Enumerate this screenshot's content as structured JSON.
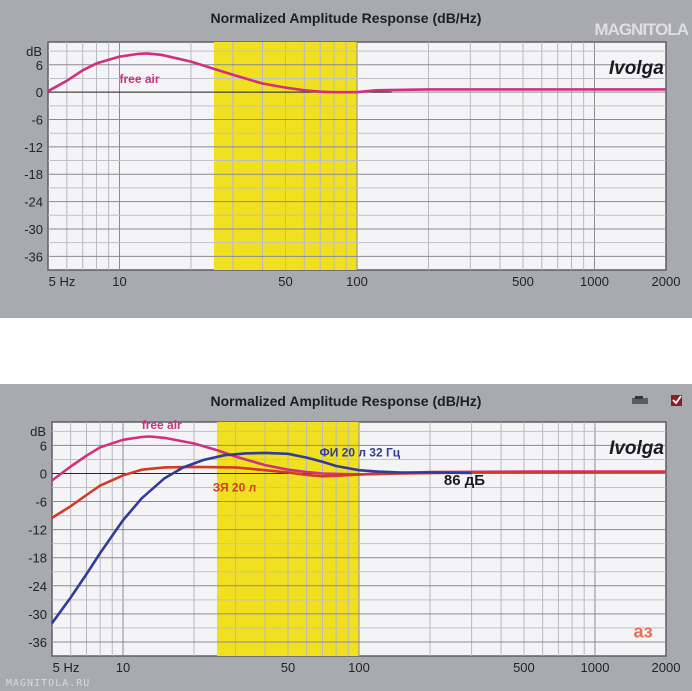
{
  "brand": "MAGNITOLA",
  "watermark": "MAGNITOLA.RU",
  "icons": [
    "disk-icon",
    "check-icon"
  ],
  "chart_data": [
    {
      "type": "line",
      "title": "Normalized Amplitude Response (dB/Hz)",
      "xscale": "log",
      "xlim": [
        5,
        2000
      ],
      "ylim": [
        -39,
        11
      ],
      "yunit": "dB",
      "yticks": [
        6,
        0,
        -6,
        -12,
        -18,
        -24,
        -30,
        -36
      ],
      "xticks": [
        {
          "value": 5,
          "label": "5 Hz"
        },
        {
          "value": 10,
          "label": "10"
        },
        {
          "value": 50,
          "label": "50"
        },
        {
          "value": 100,
          "label": "100"
        },
        {
          "value": 500,
          "label": "500"
        },
        {
          "value": 1000,
          "label": "1000"
        },
        {
          "value": 2000,
          "label": "2000"
        }
      ],
      "highlight_band": [
        25,
        100
      ],
      "grid": true,
      "watermark_label": "Ivolga",
      "series": [
        {
          "name": "free air",
          "color": "#d0307e",
          "label_at": [
            10,
            2
          ],
          "points": [
            [
              5,
              0.2
            ],
            [
              6,
              2.5
            ],
            [
              7,
              4.8
            ],
            [
              8,
              6.3
            ],
            [
              10,
              7.8
            ],
            [
              12,
              8.4
            ],
            [
              13,
              8.5
            ],
            [
              15,
              8.2
            ],
            [
              20,
              6.7
            ],
            [
              25,
              5.1
            ],
            [
              30,
              3.8
            ],
            [
              40,
              1.9
            ],
            [
              50,
              1.0
            ],
            [
              60,
              0.4
            ],
            [
              70,
              0.1
            ],
            [
              80,
              0
            ],
            [
              100,
              0
            ],
            [
              120,
              0.4
            ],
            [
              200,
              0.6
            ],
            [
              500,
              0.6
            ],
            [
              2000,
              0.6
            ]
          ]
        }
      ]
    },
    {
      "type": "line",
      "title": "Normalized Amplitude Response (dB/Hz)",
      "xscale": "log",
      "xlim": [
        5,
        2000
      ],
      "ylim": [
        -39,
        11
      ],
      "yunit": "dB",
      "yticks": [
        6,
        0,
        -6,
        -12,
        -18,
        -24,
        -30,
        -36
      ],
      "xticks": [
        {
          "value": 5,
          "label": "5 Hz"
        },
        {
          "value": 10,
          "label": "10"
        },
        {
          "value": 50,
          "label": "50"
        },
        {
          "value": 100,
          "label": "100"
        },
        {
          "value": 500,
          "label": "500"
        },
        {
          "value": 1000,
          "label": "1000"
        },
        {
          "value": 2000,
          "label": "2000"
        }
      ],
      "highlight_band": [
        25,
        100
      ],
      "grid": true,
      "watermark_label": "Ivolga",
      "annotations": [
        {
          "text": "86 дБ",
          "x": 280,
          "y": -2.5
        },
        {
          "text": "аз",
          "x": 1600,
          "y": -35
        }
      ],
      "series": [
        {
          "name": "free air",
          "color": "#d0307e",
          "label_at": [
            12,
            9.5
          ],
          "points": [
            [
              5,
              -1.5
            ],
            [
              6,
              1.5
            ],
            [
              7,
              3.8
            ],
            [
              8,
              5.6
            ],
            [
              10,
              7.2
            ],
            [
              12,
              7.8
            ],
            [
              13,
              7.9
            ],
            [
              15,
              7.6
            ],
            [
              20,
              6.4
            ],
            [
              25,
              5.0
            ],
            [
              30,
              3.6
            ],
            [
              40,
              1.8
            ],
            [
              50,
              0.8
            ],
            [
              60,
              0.3
            ],
            [
              70,
              0
            ],
            [
              80,
              -0.1
            ],
            [
              100,
              -0.2
            ],
            [
              150,
              0.1
            ],
            [
              200,
              0.3
            ],
            [
              500,
              0.4
            ],
            [
              2000,
              0.4
            ]
          ]
        },
        {
          "name": "ЗЯ 20 л",
          "color": "#d03c28",
          "label_at": [
            24,
            -3.8
          ],
          "points": [
            [
              5,
              -9.5
            ],
            [
              6,
              -7
            ],
            [
              7,
              -4.6
            ],
            [
              8,
              -2.6
            ],
            [
              10,
              -0.4
            ],
            [
              12,
              0.8
            ],
            [
              15,
              1.3
            ],
            [
              20,
              1.4
            ],
            [
              30,
              1.3
            ],
            [
              40,
              0.7
            ],
            [
              50,
              0.2
            ],
            [
              60,
              -0.3
            ],
            [
              70,
              -0.6
            ],
            [
              80,
              -0.5
            ],
            [
              100,
              -0.2
            ],
            [
              150,
              0
            ],
            [
              300,
              0.2
            ],
            [
              2000,
              0.3
            ]
          ]
        },
        {
          "name": "ФИ 20 л 32 Гц",
          "color": "#323c96",
          "label_at": [
            68,
            3.6
          ],
          "points": [
            [
              5,
              -32
            ],
            [
              6,
              -26.5
            ],
            [
              7,
              -21.5
            ],
            [
              8,
              -17
            ],
            [
              10,
              -10
            ],
            [
              12,
              -5.3
            ],
            [
              15,
              -1
            ],
            [
              18,
              1.3
            ],
            [
              22,
              2.9
            ],
            [
              27,
              3.9
            ],
            [
              33,
              4.3
            ],
            [
              40,
              4.4
            ],
            [
              50,
              4.2
            ],
            [
              60,
              3.4
            ],
            [
              70,
              2.5
            ],
            [
              80,
              1.6
            ],
            [
              100,
              0.7
            ],
            [
              120,
              0.4
            ],
            [
              150,
              0.2
            ],
            [
              200,
              0.2
            ],
            [
              300,
              0.1
            ]
          ]
        }
      ]
    }
  ]
}
